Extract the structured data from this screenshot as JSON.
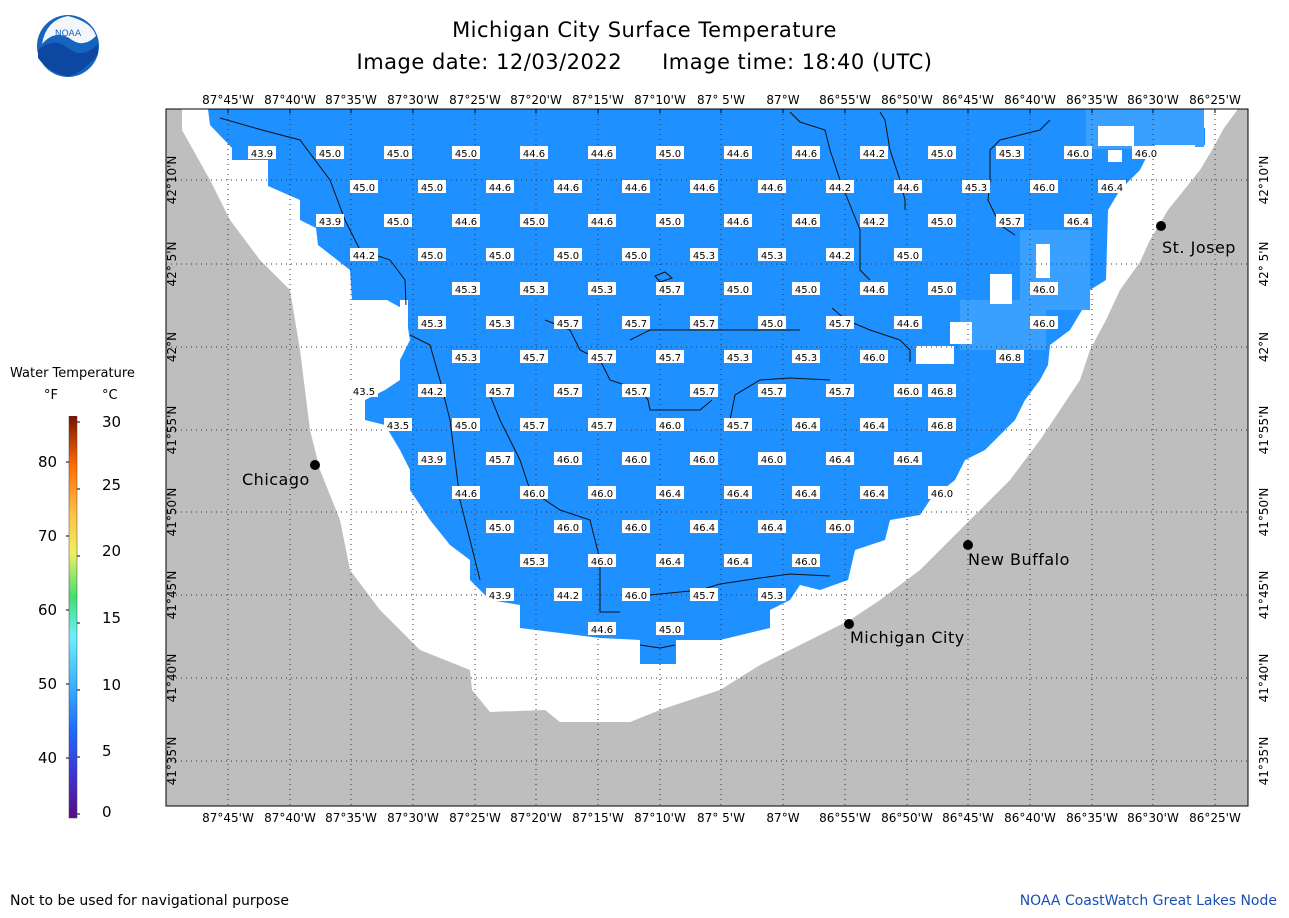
{
  "header": {
    "title": "Michigan City Surface Temperature",
    "date_label": "Image date: 12/03/2022",
    "time_label": "Image time: 18:40 (UTC)"
  },
  "logo": {
    "text": "NOAA",
    "icon": "noaa-logo-icon"
  },
  "legend": {
    "title": "Water Temperature",
    "unit_f": "°F",
    "unit_c": "°C",
    "f_ticks": [
      "80",
      "70",
      "60",
      "50",
      "40"
    ],
    "c_ticks": [
      "30",
      "25",
      "20",
      "15",
      "10",
      "5",
      "0"
    ]
  },
  "axes": {
    "lon_labels": [
      "87°45'W",
      "87°40'W",
      "87°35'W",
      "87°30'W",
      "87°25'W",
      "87°20'W",
      "87°15'W",
      "87°10'W",
      "87° 5'W",
      "87°W",
      "86°55'W",
      "86°50'W",
      "86°45'W",
      "86°40'W",
      "86°35'W",
      "86°30'W",
      "86°25'W"
    ],
    "lat_labels": [
      "42°10'N",
      "42° 5'N",
      "42°N",
      "41°55'N",
      "41°50'N",
      "41°45'N",
      "41°40'N",
      "41°35'N"
    ]
  },
  "cities": [
    {
      "name": "Chicago"
    },
    {
      "name": "St. Josep"
    },
    {
      "name": "New Buffalo"
    },
    {
      "name": "Michigan City"
    }
  ],
  "temperature_rows": [
    [
      "43.9",
      "45.0",
      "45.0",
      "45.0",
      "44.6",
      "44.6",
      "45.0",
      "44.6",
      "44.6",
      "44.2",
      "45.0",
      "45.3",
      "46.0",
      "46.0"
    ],
    [
      "45.0",
      "45.0",
      "44.6",
      "44.6",
      "44.6",
      "44.6",
      "44.6",
      "44.2",
      "44.6",
      "45.3",
      "46.0",
      "46.4"
    ],
    [
      "43.9",
      "45.0",
      "44.6",
      "45.0",
      "44.6",
      "45.0",
      "44.6",
      "44.6",
      "44.2",
      "45.0",
      "45.7",
      "46.4"
    ],
    [
      "44.2",
      "45.0",
      "45.0",
      "45.0",
      "45.0",
      "45.3",
      "45.3",
      "44.2",
      "45.0"
    ],
    [
      "45.3",
      "45.3",
      "45.3",
      "45.7",
      "45.0",
      "45.0",
      "44.6",
      "45.0",
      "46.0"
    ],
    [
      "45.3",
      "45.3",
      "45.7",
      "45.7",
      "45.7",
      "45.0",
      "45.7",
      "44.6",
      "46.0"
    ],
    [
      "45.3",
      "45.7",
      "45.7",
      "45.7",
      "45.3",
      "45.3",
      "46.0",
      "46.8"
    ],
    [
      "43.5",
      "44.2",
      "45.7",
      "45.7",
      "45.7",
      "45.7",
      "45.7",
      "45.7",
      "46.0",
      "46.8"
    ],
    [
      "43.5",
      "45.0",
      "45.7",
      "45.7",
      "46.0",
      "45.7",
      "46.4",
      "46.4",
      "46.8"
    ],
    [
      "43.9",
      "45.7",
      "46.0",
      "46.0",
      "46.0",
      "46.0",
      "46.4",
      "46.4"
    ],
    [
      "44.6",
      "46.0",
      "46.0",
      "46.4",
      "46.4",
      "46.4",
      "46.4",
      "46.0"
    ],
    [
      "45.0",
      "46.0",
      "46.0",
      "46.4",
      "46.4",
      "46.0"
    ],
    [
      "45.3",
      "46.0",
      "46.4",
      "46.4",
      "46.0"
    ],
    [
      "43.9",
      "44.2",
      "46.0",
      "45.7",
      "45.3"
    ],
    [
      "44.6",
      "45.0"
    ]
  ],
  "footer": {
    "disclaimer": "Not to be used for navigational purpose",
    "credit": "NOAA CoastWatch Great Lakes Node"
  },
  "colors": {
    "land": "#bebebe",
    "water_nodata": "#ffffff",
    "water_temp": "#1e90ff",
    "water_temp_light": "#3aa0ff"
  }
}
